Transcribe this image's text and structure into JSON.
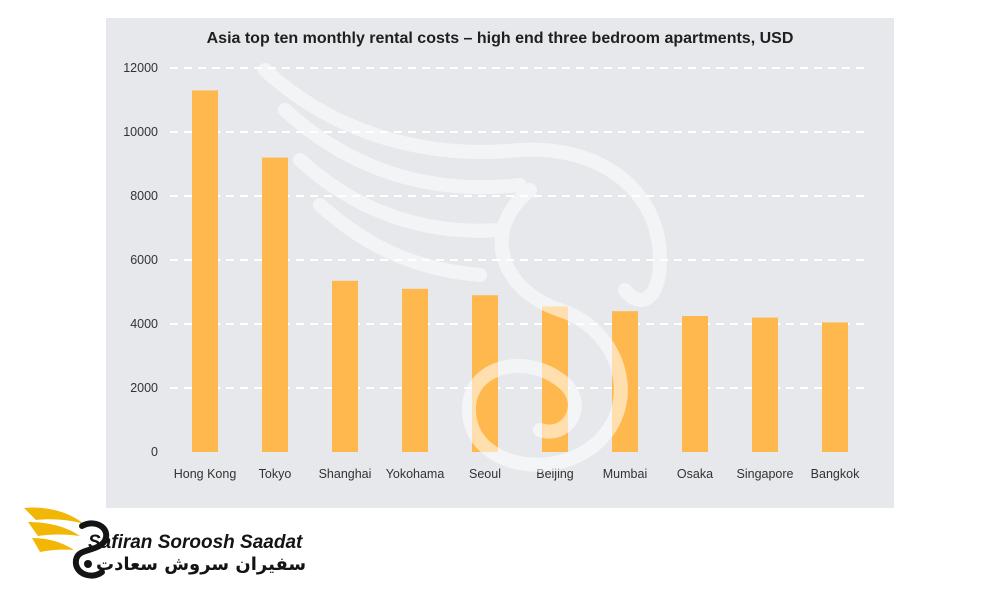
{
  "chart_data": {
    "type": "bar",
    "title": "Asia top ten monthly rental costs",
    "subtitle": " – high end three bedroom apartments, USD",
    "xlabel": "",
    "ylabel": "",
    "categories": [
      "Hong Kong",
      "Tokyo",
      "Shanghai",
      "Yokohama",
      "Seoul",
      "Beijing",
      "Mumbai",
      "Osaka",
      "Singapore",
      "Bangkok"
    ],
    "values": [
      11300,
      9200,
      5350,
      5100,
      4900,
      4550,
      4400,
      4250,
      4200,
      4050
    ],
    "ylim": [
      0,
      12000
    ],
    "yticks": [
      0,
      2000,
      4000,
      6000,
      8000,
      10000,
      12000
    ],
    "grid": "horizontal dashed",
    "legend": "none",
    "colors": {
      "bar": "#ffb84d",
      "grid": "#ffffff",
      "panel": "#e6e8ec"
    }
  },
  "logo": {
    "name_en": "Safiran Soroosh Saadat",
    "name_fa": "سفیران سروش سعادت",
    "icon": "wing-swan-icon",
    "colors": {
      "wing": "#f2b705",
      "text": "#141414"
    }
  },
  "watermark": {
    "icon": "swan-watermark-icon"
  }
}
